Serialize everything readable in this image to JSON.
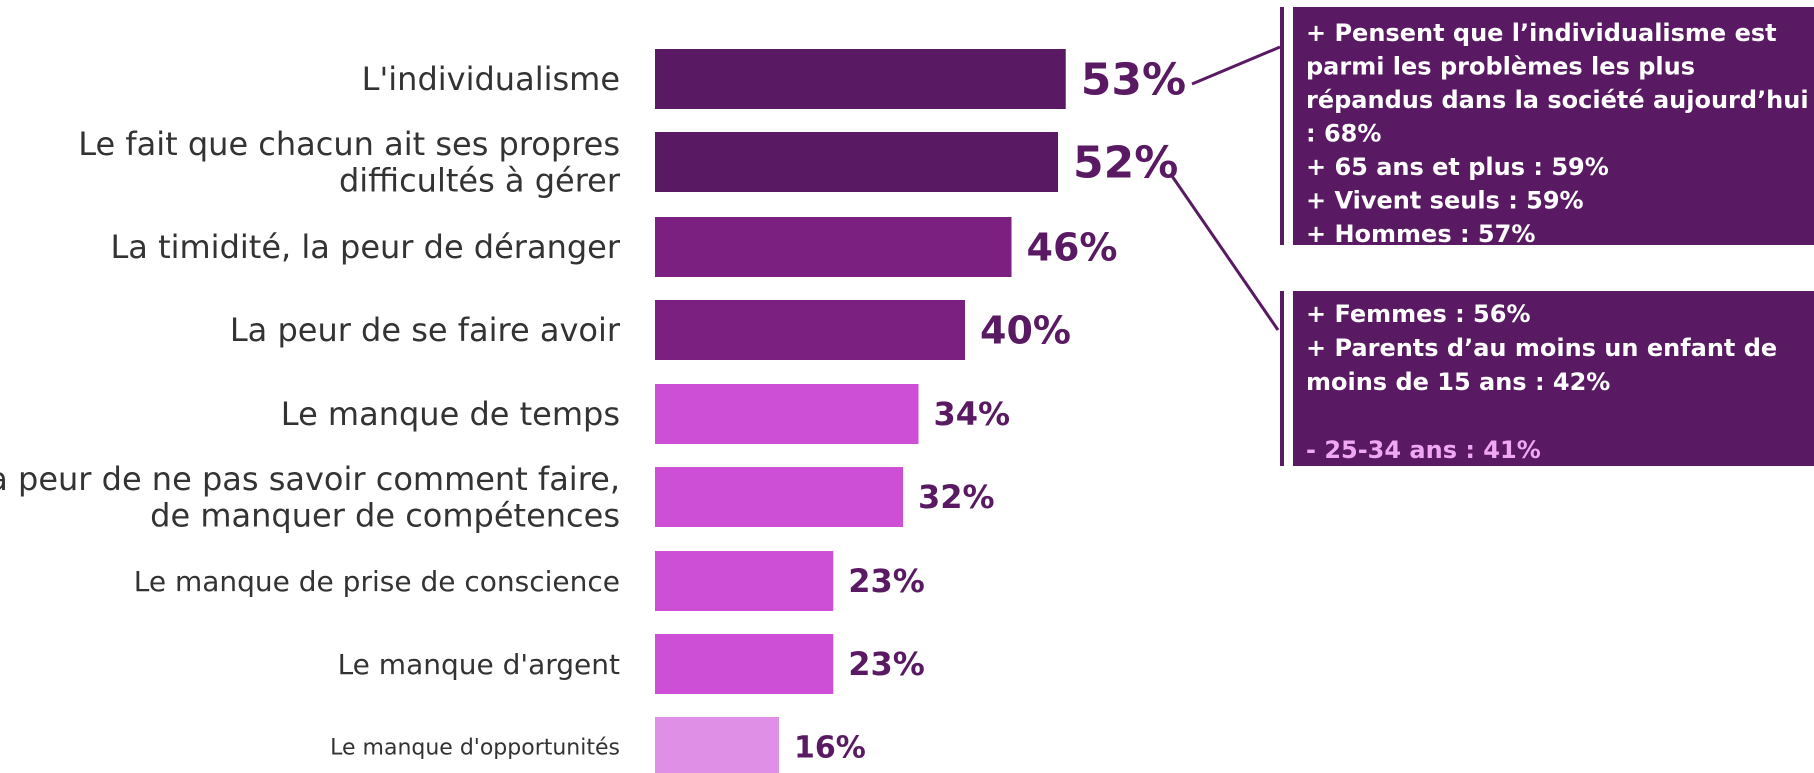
{
  "chart_data": {
    "type": "bar",
    "orientation": "horizontal",
    "categories": [
      [
        "L'individualisme"
      ],
      [
        "Le fait que chacun ait ses propres",
        "difficultés à gérer"
      ],
      [
        "La timidité, la peur de déranger"
      ],
      [
        "La peur de se faire avoir"
      ],
      [
        "Le manque de temps"
      ],
      [
        "La peur de ne pas savoir comment faire,",
        "de manquer de compétences"
      ],
      [
        "Le manque de prise de conscience"
      ],
      [
        "Le manque d'argent"
      ],
      [
        "Le manque d'opportunités"
      ]
    ],
    "values": [
      53,
      52,
      46,
      40,
      34,
      32,
      23,
      23,
      16
    ],
    "value_labels": [
      "53%",
      "52%",
      "46%",
      "40%",
      "34%",
      "32%",
      "23%",
      "23%",
      "16%"
    ],
    "bar_colors": [
      "#5a1a63",
      "#5a1a63",
      "#7b1f80",
      "#7b1f80",
      "#cc4fd6",
      "#cc4fd6",
      "#cc4fd6",
      "#cc4fd6",
      "#df8fe6"
    ],
    "label_emphasis": [
      "large",
      "large",
      "large",
      "large",
      "large",
      "large",
      "medium",
      "medium",
      "small"
    ],
    "legend": "none",
    "grid": false,
    "title": "",
    "xlabel": "",
    "ylabel": ""
  },
  "callouts": [
    {
      "target": "L'individualisme",
      "lines": [
        {
          "text": "+ Pensent que l’individualisme est",
          "color": "#ffffff"
        },
        {
          "text": "parmi les problèmes les plus",
          "color": "#ffffff"
        },
        {
          "text": "répandus dans la société aujourd’hui",
          "color": "#ffffff"
        },
        {
          "text": ": 68%",
          "color": "#ffffff"
        },
        {
          "text": "+ 65 ans et plus : 59%",
          "color": "#ffffff"
        },
        {
          "text": "+ Vivent seuls : 59%",
          "color": "#ffffff"
        },
        {
          "text": "+ Hommes : 57%",
          "color": "#ffffff"
        }
      ]
    },
    {
      "target": "Le fait que chacun ait ses propres difficultés à gérer",
      "lines": [
        {
          "text": "+ Femmes : 56%",
          "color": "#ffffff"
        },
        {
          "text": "+ Parents d’au moins un enfant de",
          "color": "#ffffff"
        },
        {
          "text": "moins de 15 ans : 42%",
          "color": "#ffffff"
        },
        {
          "text": "",
          "color": "#ffffff"
        },
        {
          "text": "- 25-34 ans : 41%",
          "color": "#f0a8f5"
        }
      ]
    }
  ]
}
